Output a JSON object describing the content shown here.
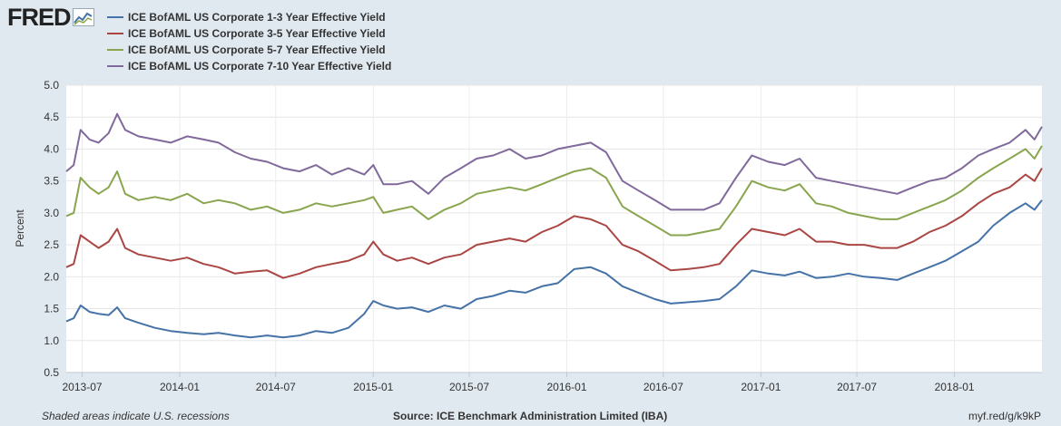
{
  "logo": {
    "text": "FRED"
  },
  "footer": {
    "recession_note": "Shaded areas indicate U.S. recessions",
    "source": "Source: ICE Benchmark Administration Limited (IBA)",
    "link": "myf.red/g/k9kP"
  },
  "chart_data": {
    "type": "line",
    "ylabel": "Percent",
    "xlabel": "",
    "ylim": [
      0.5,
      5.0
    ],
    "yticks": [
      "0.5",
      "1.0",
      "1.5",
      "2.0",
      "2.5",
      "3.0",
      "3.5",
      "4.0",
      "4.5",
      "5.0"
    ],
    "xlim": [
      "2013-06-01",
      "2018-06-15"
    ],
    "xticks": [
      "2013-07",
      "2014-01",
      "2014-07",
      "2015-01",
      "2015-07",
      "2016-01",
      "2016-07",
      "2017-01",
      "2017-07",
      "2018-01"
    ],
    "grid": true,
    "legend_position": "top-left",
    "series": [
      {
        "name": "ICE BofAML US Corporate 1-3 Year Effective Yield",
        "color": "#4572a7",
        "points": [
          [
            "2013-06-01",
            1.3
          ],
          [
            "2013-06-15",
            1.35
          ],
          [
            "2013-06-28",
            1.55
          ],
          [
            "2013-07-15",
            1.45
          ],
          [
            "2013-08-01",
            1.42
          ],
          [
            "2013-08-20",
            1.4
          ],
          [
            "2013-09-05",
            1.52
          ],
          [
            "2013-09-20",
            1.35
          ],
          [
            "2013-10-15",
            1.28
          ],
          [
            "2013-11-15",
            1.2
          ],
          [
            "2013-12-15",
            1.15
          ],
          [
            "2014-01-15",
            1.12
          ],
          [
            "2014-02-15",
            1.1
          ],
          [
            "2014-03-15",
            1.12
          ],
          [
            "2014-04-15",
            1.08
          ],
          [
            "2014-05-15",
            1.05
          ],
          [
            "2014-06-15",
            1.08
          ],
          [
            "2014-07-15",
            1.05
          ],
          [
            "2014-08-15",
            1.08
          ],
          [
            "2014-09-15",
            1.15
          ],
          [
            "2014-10-15",
            1.12
          ],
          [
            "2014-11-15",
            1.2
          ],
          [
            "2014-12-15",
            1.42
          ],
          [
            "2015-01-01",
            1.62
          ],
          [
            "2015-01-20",
            1.55
          ],
          [
            "2015-02-15",
            1.5
          ],
          [
            "2015-03-15",
            1.52
          ],
          [
            "2015-04-15",
            1.45
          ],
          [
            "2015-05-15",
            1.55
          ],
          [
            "2015-06-15",
            1.5
          ],
          [
            "2015-07-15",
            1.65
          ],
          [
            "2015-08-15",
            1.7
          ],
          [
            "2015-09-15",
            1.78
          ],
          [
            "2015-10-15",
            1.75
          ],
          [
            "2015-11-15",
            1.85
          ],
          [
            "2015-12-15",
            1.9
          ],
          [
            "2016-01-15",
            2.12
          ],
          [
            "2016-02-15",
            2.15
          ],
          [
            "2016-03-15",
            2.05
          ],
          [
            "2016-04-15",
            1.85
          ],
          [
            "2016-05-15",
            1.75
          ],
          [
            "2016-06-15",
            1.65
          ],
          [
            "2016-07-15",
            1.58
          ],
          [
            "2016-08-15",
            1.6
          ],
          [
            "2016-09-15",
            1.62
          ],
          [
            "2016-10-15",
            1.65
          ],
          [
            "2016-11-15",
            1.85
          ],
          [
            "2016-12-15",
            2.1
          ],
          [
            "2017-01-15",
            2.05
          ],
          [
            "2017-02-15",
            2.02
          ],
          [
            "2017-03-15",
            2.08
          ],
          [
            "2017-04-15",
            1.98
          ],
          [
            "2017-05-15",
            2.0
          ],
          [
            "2017-06-15",
            2.05
          ],
          [
            "2017-07-15",
            2.0
          ],
          [
            "2017-08-15",
            1.98
          ],
          [
            "2017-09-15",
            1.95
          ],
          [
            "2017-10-15",
            2.05
          ],
          [
            "2017-11-15",
            2.15
          ],
          [
            "2017-12-15",
            2.25
          ],
          [
            "2018-01-15",
            2.4
          ],
          [
            "2018-02-15",
            2.55
          ],
          [
            "2018-03-15",
            2.8
          ],
          [
            "2018-04-15",
            3.0
          ],
          [
            "2018-05-15",
            3.15
          ],
          [
            "2018-06-01",
            3.05
          ],
          [
            "2018-06-15",
            3.2
          ]
        ]
      },
      {
        "name": "ICE BofAML US Corporate 3-5 Year Effective Yield",
        "color": "#aa4643",
        "points": [
          [
            "2013-06-01",
            2.15
          ],
          [
            "2013-06-15",
            2.2
          ],
          [
            "2013-06-28",
            2.65
          ],
          [
            "2013-07-15",
            2.55
          ],
          [
            "2013-08-01",
            2.45
          ],
          [
            "2013-08-20",
            2.55
          ],
          [
            "2013-09-05",
            2.75
          ],
          [
            "2013-09-20",
            2.45
          ],
          [
            "2013-10-15",
            2.35
          ],
          [
            "2013-11-15",
            2.3
          ],
          [
            "2013-12-15",
            2.25
          ],
          [
            "2014-01-15",
            2.3
          ],
          [
            "2014-02-15",
            2.2
          ],
          [
            "2014-03-15",
            2.15
          ],
          [
            "2014-04-15",
            2.05
          ],
          [
            "2014-05-15",
            2.08
          ],
          [
            "2014-06-15",
            2.1
          ],
          [
            "2014-07-15",
            1.98
          ],
          [
            "2014-08-15",
            2.05
          ],
          [
            "2014-09-15",
            2.15
          ],
          [
            "2014-10-15",
            2.2
          ],
          [
            "2014-11-15",
            2.25
          ],
          [
            "2014-12-15",
            2.35
          ],
          [
            "2015-01-01",
            2.55
          ],
          [
            "2015-01-20",
            2.35
          ],
          [
            "2015-02-15",
            2.25
          ],
          [
            "2015-03-15",
            2.3
          ],
          [
            "2015-04-15",
            2.2
          ],
          [
            "2015-05-15",
            2.3
          ],
          [
            "2015-06-15",
            2.35
          ],
          [
            "2015-07-15",
            2.5
          ],
          [
            "2015-08-15",
            2.55
          ],
          [
            "2015-09-15",
            2.6
          ],
          [
            "2015-10-15",
            2.55
          ],
          [
            "2015-11-15",
            2.7
          ],
          [
            "2015-12-15",
            2.8
          ],
          [
            "2016-01-15",
            2.95
          ],
          [
            "2016-02-15",
            2.9
          ],
          [
            "2016-03-15",
            2.8
          ],
          [
            "2016-04-15",
            2.5
          ],
          [
            "2016-05-15",
            2.4
          ],
          [
            "2016-06-15",
            2.25
          ],
          [
            "2016-07-15",
            2.1
          ],
          [
            "2016-08-15",
            2.12
          ],
          [
            "2016-09-15",
            2.15
          ],
          [
            "2016-10-15",
            2.2
          ],
          [
            "2016-11-15",
            2.5
          ],
          [
            "2016-12-15",
            2.75
          ],
          [
            "2017-01-15",
            2.7
          ],
          [
            "2017-02-15",
            2.65
          ],
          [
            "2017-03-15",
            2.75
          ],
          [
            "2017-04-15",
            2.55
          ],
          [
            "2017-05-15",
            2.55
          ],
          [
            "2017-06-15",
            2.5
          ],
          [
            "2017-07-15",
            2.5
          ],
          [
            "2017-08-15",
            2.45
          ],
          [
            "2017-09-15",
            2.45
          ],
          [
            "2017-10-15",
            2.55
          ],
          [
            "2017-11-15",
            2.7
          ],
          [
            "2017-12-15",
            2.8
          ],
          [
            "2018-01-15",
            2.95
          ],
          [
            "2018-02-15",
            3.15
          ],
          [
            "2018-03-15",
            3.3
          ],
          [
            "2018-04-15",
            3.4
          ],
          [
            "2018-05-15",
            3.6
          ],
          [
            "2018-06-01",
            3.5
          ],
          [
            "2018-06-15",
            3.7
          ]
        ]
      },
      {
        "name": "ICE BofAML US Corporate 5-7 Year Effective Yield",
        "color": "#89a54e",
        "points": [
          [
            "2013-06-01",
            2.95
          ],
          [
            "2013-06-15",
            3.0
          ],
          [
            "2013-06-28",
            3.55
          ],
          [
            "2013-07-15",
            3.4
          ],
          [
            "2013-08-01",
            3.3
          ],
          [
            "2013-08-20",
            3.4
          ],
          [
            "2013-09-05",
            3.65
          ],
          [
            "2013-09-20",
            3.3
          ],
          [
            "2013-10-15",
            3.2
          ],
          [
            "2013-11-15",
            3.25
          ],
          [
            "2013-12-15",
            3.2
          ],
          [
            "2014-01-15",
            3.3
          ],
          [
            "2014-02-15",
            3.15
          ],
          [
            "2014-03-15",
            3.2
          ],
          [
            "2014-04-15",
            3.15
          ],
          [
            "2014-05-15",
            3.05
          ],
          [
            "2014-06-15",
            3.1
          ],
          [
            "2014-07-15",
            3.0
          ],
          [
            "2014-08-15",
            3.05
          ],
          [
            "2014-09-15",
            3.15
          ],
          [
            "2014-10-15",
            3.1
          ],
          [
            "2014-11-15",
            3.15
          ],
          [
            "2014-12-15",
            3.2
          ],
          [
            "2015-01-01",
            3.25
          ],
          [
            "2015-01-20",
            3.0
          ],
          [
            "2015-02-15",
            3.05
          ],
          [
            "2015-03-15",
            3.1
          ],
          [
            "2015-04-15",
            2.9
          ],
          [
            "2015-05-15",
            3.05
          ],
          [
            "2015-06-15",
            3.15
          ],
          [
            "2015-07-15",
            3.3
          ],
          [
            "2015-08-15",
            3.35
          ],
          [
            "2015-09-15",
            3.4
          ],
          [
            "2015-10-15",
            3.35
          ],
          [
            "2015-11-15",
            3.45
          ],
          [
            "2015-12-15",
            3.55
          ],
          [
            "2016-01-15",
            3.65
          ],
          [
            "2016-02-15",
            3.7
          ],
          [
            "2016-03-15",
            3.55
          ],
          [
            "2016-04-15",
            3.1
          ],
          [
            "2016-05-15",
            2.95
          ],
          [
            "2016-06-15",
            2.8
          ],
          [
            "2016-07-15",
            2.65
          ],
          [
            "2016-08-15",
            2.65
          ],
          [
            "2016-09-15",
            2.7
          ],
          [
            "2016-10-15",
            2.75
          ],
          [
            "2016-11-15",
            3.1
          ],
          [
            "2016-12-15",
            3.5
          ],
          [
            "2017-01-15",
            3.4
          ],
          [
            "2017-02-15",
            3.35
          ],
          [
            "2017-03-15",
            3.45
          ],
          [
            "2017-04-15",
            3.15
          ],
          [
            "2017-05-15",
            3.1
          ],
          [
            "2017-06-15",
            3.0
          ],
          [
            "2017-07-15",
            2.95
          ],
          [
            "2017-08-15",
            2.9
          ],
          [
            "2017-09-15",
            2.9
          ],
          [
            "2017-10-15",
            3.0
          ],
          [
            "2017-11-15",
            3.1
          ],
          [
            "2017-12-15",
            3.2
          ],
          [
            "2018-01-15",
            3.35
          ],
          [
            "2018-02-15",
            3.55
          ],
          [
            "2018-03-15",
            3.7
          ],
          [
            "2018-04-15",
            3.85
          ],
          [
            "2018-05-15",
            4.0
          ],
          [
            "2018-06-01",
            3.85
          ],
          [
            "2018-06-15",
            4.05
          ]
        ]
      },
      {
        "name": "ICE BofAML US Corporate 7-10 Year Effective Yield",
        "color": "#80699b",
        "points": [
          [
            "2013-06-01",
            3.65
          ],
          [
            "2013-06-15",
            3.75
          ],
          [
            "2013-06-28",
            4.3
          ],
          [
            "2013-07-15",
            4.15
          ],
          [
            "2013-08-01",
            4.1
          ],
          [
            "2013-08-20",
            4.25
          ],
          [
            "2013-09-05",
            4.55
          ],
          [
            "2013-09-20",
            4.3
          ],
          [
            "2013-10-15",
            4.2
          ],
          [
            "2013-11-15",
            4.15
          ],
          [
            "2013-12-15",
            4.1
          ],
          [
            "2014-01-15",
            4.2
          ],
          [
            "2014-02-15",
            4.15
          ],
          [
            "2014-03-15",
            4.1
          ],
          [
            "2014-04-15",
            3.95
          ],
          [
            "2014-05-15",
            3.85
          ],
          [
            "2014-06-15",
            3.8
          ],
          [
            "2014-07-15",
            3.7
          ],
          [
            "2014-08-15",
            3.65
          ],
          [
            "2014-09-15",
            3.75
          ],
          [
            "2014-10-15",
            3.6
          ],
          [
            "2014-11-15",
            3.7
          ],
          [
            "2014-12-15",
            3.6
          ],
          [
            "2015-01-01",
            3.75
          ],
          [
            "2015-01-20",
            3.45
          ],
          [
            "2015-02-15",
            3.45
          ],
          [
            "2015-03-15",
            3.5
          ],
          [
            "2015-04-15",
            3.3
          ],
          [
            "2015-05-15",
            3.55
          ],
          [
            "2015-06-15",
            3.7
          ],
          [
            "2015-07-15",
            3.85
          ],
          [
            "2015-08-15",
            3.9
          ],
          [
            "2015-09-15",
            4.0
          ],
          [
            "2015-10-15",
            3.85
          ],
          [
            "2015-11-15",
            3.9
          ],
          [
            "2015-12-15",
            4.0
          ],
          [
            "2016-01-15",
            4.05
          ],
          [
            "2016-02-15",
            4.1
          ],
          [
            "2016-03-15",
            3.95
          ],
          [
            "2016-04-15",
            3.5
          ],
          [
            "2016-05-15",
            3.35
          ],
          [
            "2016-06-15",
            3.2
          ],
          [
            "2016-07-15",
            3.05
          ],
          [
            "2016-08-15",
            3.05
          ],
          [
            "2016-09-15",
            3.05
          ],
          [
            "2016-10-15",
            3.15
          ],
          [
            "2016-11-15",
            3.55
          ],
          [
            "2016-12-15",
            3.9
          ],
          [
            "2017-01-15",
            3.8
          ],
          [
            "2017-02-15",
            3.75
          ],
          [
            "2017-03-15",
            3.85
          ],
          [
            "2017-04-15",
            3.55
          ],
          [
            "2017-05-15",
            3.5
          ],
          [
            "2017-06-15",
            3.45
          ],
          [
            "2017-07-15",
            3.4
          ],
          [
            "2017-08-15",
            3.35
          ],
          [
            "2017-09-15",
            3.3
          ],
          [
            "2017-10-15",
            3.4
          ],
          [
            "2017-11-15",
            3.5
          ],
          [
            "2017-12-15",
            3.55
          ],
          [
            "2018-01-15",
            3.7
          ],
          [
            "2018-02-15",
            3.9
          ],
          [
            "2018-03-15",
            4.0
          ],
          [
            "2018-04-15",
            4.1
          ],
          [
            "2018-05-15",
            4.3
          ],
          [
            "2018-06-01",
            4.15
          ],
          [
            "2018-06-15",
            4.35
          ]
        ]
      }
    ]
  }
}
